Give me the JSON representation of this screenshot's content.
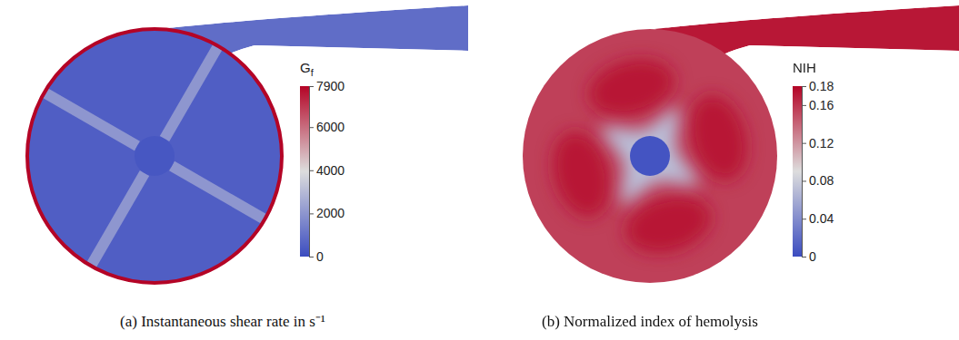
{
  "chart_data": [
    {
      "type": "contour",
      "caption": "(a) Instantaneous shear rate in s⁻¹",
      "colors": [
        "#3b4cc0",
        "#dddddd",
        "#b40426"
      ],
      "colorbar": {
        "title": "G",
        "title_subscript": "f",
        "lim": [
          0,
          7900
        ],
        "ticks": [
          0,
          2000,
          4000,
          6000,
          7900
        ]
      },
      "field": {
        "chamber": 500,
        "blades": 2300,
        "hub": 300,
        "wall": 7900,
        "outlet": 900
      }
    },
    {
      "type": "contour",
      "caption": "(b) Normalized index of hemolysis",
      "colors": [
        "#3b4cc0",
        "#dddddd",
        "#b40426"
      ],
      "colorbar": {
        "title": "NIH",
        "lim": [
          0,
          0.18
        ],
        "ticks": [
          0,
          0.04,
          0.08,
          0.12,
          0.16,
          0.18
        ]
      },
      "field": {
        "chamber": 0.155,
        "lobes": 0.172,
        "star": 0.07,
        "hub": 0.005,
        "outlet": 0.172
      }
    }
  ]
}
